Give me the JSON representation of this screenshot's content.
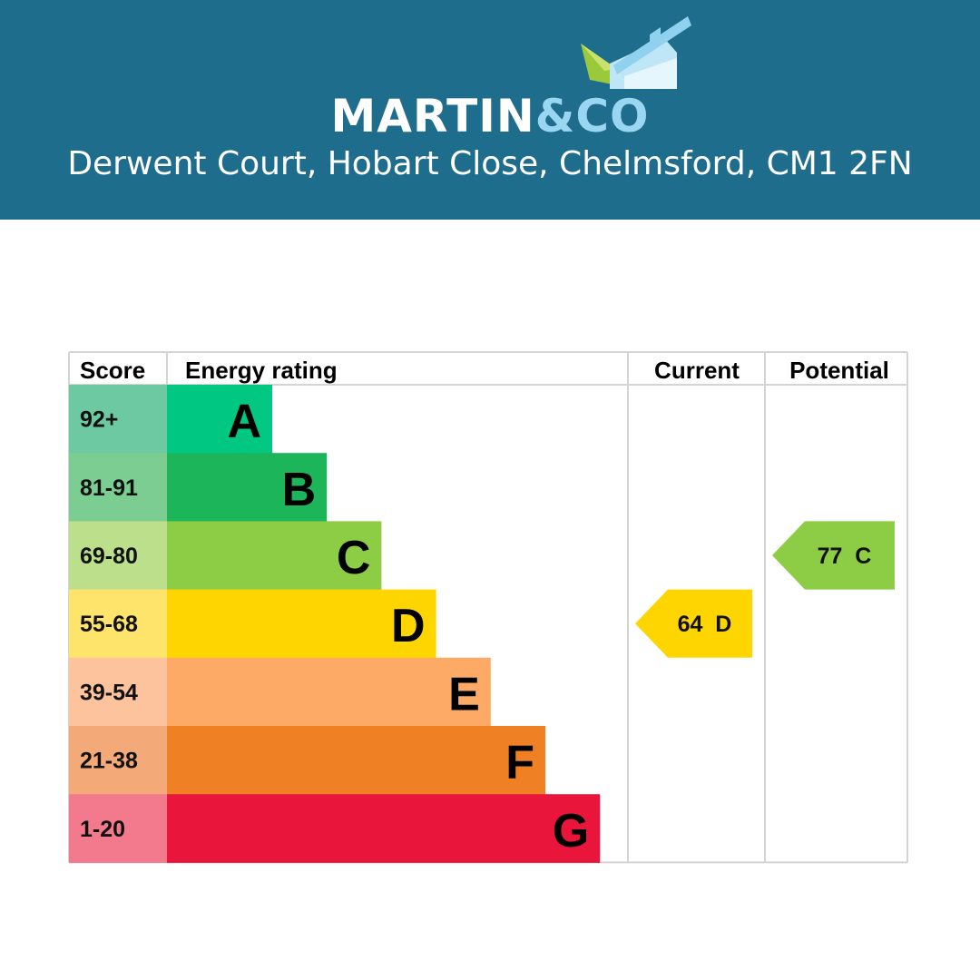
{
  "header": {
    "brand_martin": "MARTIN",
    "brand_amp": "&",
    "brand_co": "CO",
    "address": "Derwent Court, Hobart Close, Chelmsford, CM1 2FN",
    "logo_icon": "house-logo-icon",
    "background_color": "#1f6d8c",
    "accent_color": "#9ad6f1"
  },
  "chart_data": {
    "type": "table",
    "columns": [
      "Score",
      "Energy rating",
      "Current",
      "Potential"
    ],
    "bands": [
      {
        "score": "92+",
        "letter": "A",
        "score_color": "#6cc9a1",
        "bar_color": "#00c781"
      },
      {
        "score": "81-91",
        "letter": "B",
        "score_color": "#7ccd91",
        "bar_color": "#1cb559"
      },
      {
        "score": "69-80",
        "letter": "C",
        "score_color": "#bbdf8b",
        "bar_color": "#8ccd45"
      },
      {
        "score": "55-68",
        "letter": "D",
        "score_color": "#ffe46c",
        "bar_color": "#ffd500"
      },
      {
        "score": "39-54",
        "letter": "E",
        "score_color": "#fdc39d",
        "bar_color": "#fcaa65"
      },
      {
        "score": "21-38",
        "letter": "F",
        "score_color": "#f4aa78",
        "bar_color": "#ef8023"
      },
      {
        "score": "1-20",
        "letter": "G",
        "score_color": "#f27a8c",
        "bar_color": "#e9153b"
      }
    ],
    "current": {
      "value": 64,
      "band": "D",
      "label": "64  D"
    },
    "potential": {
      "value": 77,
      "band": "C",
      "label": "77  C"
    }
  }
}
